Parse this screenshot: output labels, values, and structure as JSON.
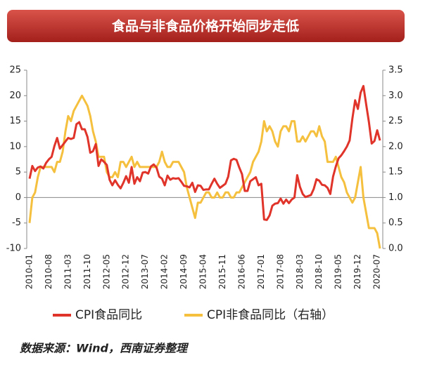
{
  "chart_data": {
    "type": "line",
    "title": "食品与非食品价格开始同步走低",
    "source": "数据来源：Wind，西南证券整理",
    "categories": [
      "2010-01",
      null,
      null,
      null,
      null,
      null,
      null,
      "2010-08",
      null,
      null,
      null,
      null,
      null,
      null,
      "2011-03",
      null,
      null,
      null,
      null,
      null,
      null,
      "2011-10",
      null,
      null,
      null,
      null,
      null,
      null,
      "2012-05",
      null,
      null,
      null,
      null,
      null,
      null,
      "2012-12",
      null,
      null,
      null,
      null,
      null,
      null,
      "2013-07",
      null,
      null,
      null,
      null,
      null,
      null,
      "2014-02",
      null,
      null,
      null,
      null,
      null,
      null,
      "2014-09",
      null,
      null,
      null,
      null,
      null,
      null,
      "2015-04",
      null,
      null,
      null,
      null,
      null,
      null,
      "2015-11",
      null,
      null,
      null,
      null,
      null,
      null,
      "2016-06",
      null,
      null,
      null,
      null,
      null,
      null,
      "2017-01",
      null,
      null,
      null,
      null,
      null,
      null,
      "2017-08",
      null,
      null,
      null,
      null,
      null,
      null,
      "2018-03",
      null,
      null,
      null,
      null,
      null,
      null,
      "2018-10",
      null,
      null,
      null,
      null,
      null,
      null,
      "2019-05",
      null,
      null,
      null,
      null,
      null,
      null,
      "2019-12",
      null,
      null,
      null,
      null,
      null,
      null,
      "2020-07",
      null
    ],
    "series": [
      {
        "name": "CPI食品同比",
        "color": "#e0342a",
        "axis": "y",
        "values": [
          3.7,
          6.2,
          5.2,
          5.9,
          6.1,
          5.7,
          6.8,
          7.5,
          8.0,
          10.1,
          11.7,
          9.6,
          10.3,
          11.0,
          11.7,
          11.5,
          11.7,
          14.4,
          14.8,
          13.4,
          13.4,
          11.9,
          8.8,
          9.1,
          10.5,
          6.2,
          7.5,
          7.0,
          6.4,
          3.5,
          2.4,
          3.4,
          2.5,
          1.8,
          2.9,
          4.2,
          2.9,
          6.0,
          2.7,
          4.0,
          3.2,
          4.9,
          5.0,
          4.7,
          6.1,
          6.5,
          5.9,
          4.1,
          3.7,
          2.4,
          4.3,
          3.5,
          3.8,
          3.7,
          3.8,
          3.1,
          2.3,
          2.2,
          2.0,
          2.9,
          1.1,
          2.4,
          2.3,
          1.5,
          1.6,
          1.6,
          2.7,
          3.7,
          2.7,
          1.9,
          2.3,
          2.7,
          4.1,
          7.3,
          7.6,
          7.4,
          5.9,
          4.6,
          1.3,
          1.3,
          3.2,
          3.6,
          4.0,
          2.4,
          2.7,
          -4.3,
          -4.4,
          -3.5,
          -1.6,
          -1.2,
          -1.1,
          -0.2,
          -1.2,
          -0.4,
          -1.1,
          -0.4,
          0.0,
          4.4,
          2.1,
          0.7,
          0.1,
          0.3,
          0.5,
          1.7,
          3.6,
          3.3,
          2.5,
          2.4,
          1.9,
          0.7,
          4.1,
          6.1,
          7.7,
          8.3,
          9.1,
          10.0,
          11.2,
          15.5,
          19.1,
          17.4,
          20.6,
          21.9,
          18.3,
          14.8,
          10.6,
          11.1,
          13.2,
          11.2
        ]
      },
      {
        "name": "CPI非食品同比（右轴）",
        "color": "#f5c03e",
        "axis": "y2",
        "values": [
          0.5,
          1.0,
          1.1,
          1.4,
          1.6,
          1.6,
          1.6,
          1.6,
          1.6,
          1.5,
          1.7,
          1.7,
          1.9,
          2.3,
          2.6,
          2.5,
          2.7,
          2.8,
          2.9,
          3.0,
          2.9,
          2.8,
          2.6,
          2.3,
          2.1,
          1.8,
          1.8,
          1.8,
          1.5,
          1.4,
          1.4,
          1.5,
          1.4,
          1.7,
          1.7,
          1.6,
          1.7,
          1.8,
          1.6,
          1.7,
          1.6,
          1.6,
          1.6,
          1.6,
          1.6,
          1.6,
          1.6,
          1.7,
          1.9,
          1.7,
          1.6,
          1.6,
          1.7,
          1.7,
          1.7,
          1.6,
          1.5,
          1.2,
          1.0,
          0.8,
          0.6,
          0.9,
          0.9,
          1.0,
          1.1,
          1.1,
          1.0,
          1.0,
          1.1,
          1.0,
          1.0,
          1.1,
          1.1,
          1.0,
          1.0,
          1.1,
          1.1,
          1.2,
          1.3,
          1.4,
          1.5,
          1.7,
          1.8,
          1.9,
          2.1,
          2.5,
          2.3,
          2.4,
          2.3,
          2.1,
          2.0,
          2.3,
          2.4,
          2.4,
          2.3,
          2.5,
          2.5,
          2.1,
          2.1,
          2.2,
          2.1,
          2.2,
          2.3,
          2.3,
          2.2,
          2.4,
          2.2,
          2.1,
          1.7,
          1.7,
          1.7,
          1.8,
          1.6,
          1.4,
          1.3,
          1.1,
          1.0,
          0.9,
          1.0,
          1.3,
          1.6,
          1.0,
          0.7,
          0.4,
          0.4,
          0.4,
          0.3,
          0.0
        ]
      }
    ],
    "ylim": [
      -10,
      25
    ],
    "yticks": [
      -10,
      -5,
      0,
      5,
      10,
      15,
      20,
      25
    ],
    "y2lim": [
      0,
      3.5
    ],
    "y2ticks": [
      {
        "value": 0,
        "label": "0.0"
      },
      0.5,
      {
        "value": 1,
        "label": "1.0"
      },
      1.5,
      {
        "value": 2,
        "label": "2.0"
      },
      2.5,
      {
        "value": 3,
        "label": "3.0"
      },
      3.5
    ]
  }
}
